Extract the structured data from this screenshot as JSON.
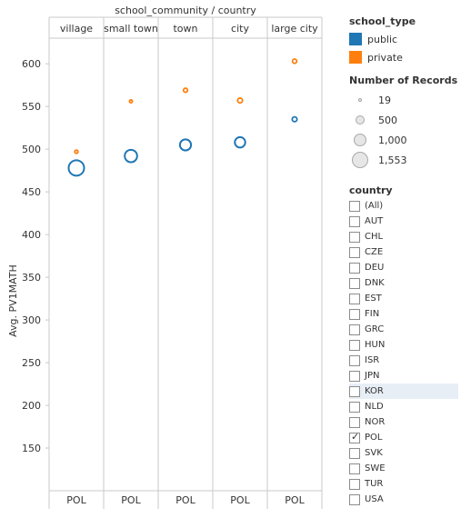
{
  "chart_data": {
    "type": "scatter",
    "column_header": "school_community  /  country",
    "facets": [
      "village",
      "small town",
      "town",
      "city",
      "large city"
    ],
    "bottom_labels": [
      "POL",
      "POL",
      "POL",
      "POL",
      "POL"
    ],
    "ylabel": "Avg. PV1MATH",
    "ylim": [
      100,
      630
    ],
    "yticks": [
      150,
      200,
      250,
      300,
      350,
      400,
      450,
      500,
      550,
      600
    ],
    "series": [
      {
        "name": "public",
        "color": "#1f77b4",
        "values": [
          478,
          492,
          505,
          508,
          535
        ],
        "records": [
          1553,
          1000,
          800,
          700,
          150
        ]
      },
      {
        "name": "private",
        "color": "#ff7f0e",
        "values": [
          497,
          556,
          569,
          557,
          603
        ],
        "records": [
          70,
          19,
          110,
          150,
          120
        ]
      }
    ]
  },
  "legend": {
    "type_title": "school_type",
    "types": [
      {
        "label": "public",
        "color": "#1f77b4"
      },
      {
        "label": "private",
        "color": "#ff7f0e"
      }
    ],
    "size_title": "Number of Records",
    "sizes": [
      {
        "label": "19",
        "value": 19
      },
      {
        "label": "500",
        "value": 500
      },
      {
        "label": "1,000",
        "value": 1000
      },
      {
        "label": "1,553",
        "value": 1553
      }
    ]
  },
  "filter": {
    "title": "country",
    "items": [
      {
        "label": "(All)",
        "checked": false
      },
      {
        "label": "AUT",
        "checked": false
      },
      {
        "label": "CHL",
        "checked": false
      },
      {
        "label": "CZE",
        "checked": false
      },
      {
        "label": "DEU",
        "checked": false
      },
      {
        "label": "DNK",
        "checked": false
      },
      {
        "label": "EST",
        "checked": false
      },
      {
        "label": "FIN",
        "checked": false
      },
      {
        "label": "GRC",
        "checked": false
      },
      {
        "label": "HUN",
        "checked": false
      },
      {
        "label": "ISR",
        "checked": false
      },
      {
        "label": "JPN",
        "checked": false
      },
      {
        "label": "KOR",
        "checked": false,
        "hover": true
      },
      {
        "label": "NLD",
        "checked": false
      },
      {
        "label": "NOR",
        "checked": false
      },
      {
        "label": "POL",
        "checked": true
      },
      {
        "label": "SVK",
        "checked": false
      },
      {
        "label": "SWE",
        "checked": false
      },
      {
        "label": "TUR",
        "checked": false
      },
      {
        "label": "USA",
        "checked": false
      }
    ]
  }
}
